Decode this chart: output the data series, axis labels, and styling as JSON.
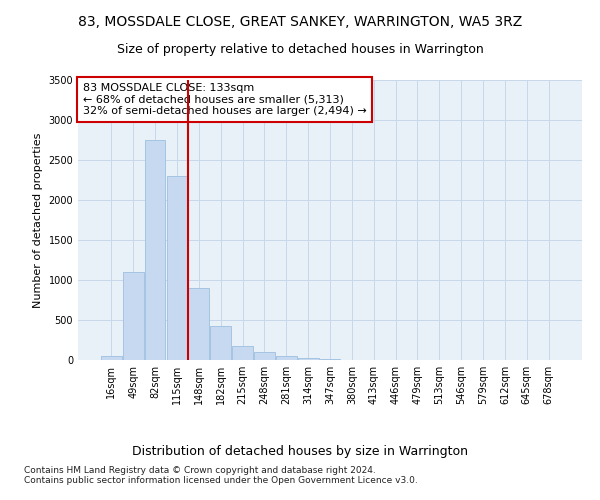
{
  "title": "83, MOSSDALE CLOSE, GREAT SANKEY, WARRINGTON, WA5 3RZ",
  "subtitle": "Size of property relative to detached houses in Warrington",
  "xlabel": "Distribution of detached houses by size in Warrington",
  "ylabel": "Number of detached properties",
  "annotation_line": "83 MOSSDALE CLOSE: 133sqm\n← 68% of detached houses are smaller (5,313)\n32% of semi-detached houses are larger (2,494) →",
  "categories": [
    "16sqm",
    "49sqm",
    "82sqm",
    "115sqm",
    "148sqm",
    "182sqm",
    "215sqm",
    "248sqm",
    "281sqm",
    "314sqm",
    "347sqm",
    "380sqm",
    "413sqm",
    "446sqm",
    "479sqm",
    "513sqm",
    "546sqm",
    "579sqm",
    "612sqm",
    "645sqm",
    "678sqm"
  ],
  "values": [
    50,
    1100,
    2750,
    2300,
    900,
    420,
    175,
    100,
    50,
    30,
    15,
    5,
    3,
    2,
    1,
    0,
    0,
    0,
    0,
    0,
    0
  ],
  "bar_color": "#c6d9f0",
  "bar_edge_color": "#9dbfe0",
  "vline_color": "#cc0000",
  "vline_x": 3.5,
  "annotation_box_color": "#ffffff",
  "annotation_box_edge": "#cc0000",
  "grid_color": "#c8d8ea",
  "background_color": "#e8f0f8",
  "ylim": [
    0,
    3500
  ],
  "yticks": [
    0,
    500,
    1000,
    1500,
    2000,
    2500,
    3000,
    3500
  ],
  "footer": "Contains HM Land Registry data © Crown copyright and database right 2024.\nContains public sector information licensed under the Open Government Licence v3.0.",
  "title_fontsize": 10,
  "subtitle_fontsize": 9,
  "xlabel_fontsize": 9,
  "ylabel_fontsize": 8,
  "annotation_fontsize": 8,
  "tick_fontsize": 7,
  "footer_fontsize": 6.5
}
